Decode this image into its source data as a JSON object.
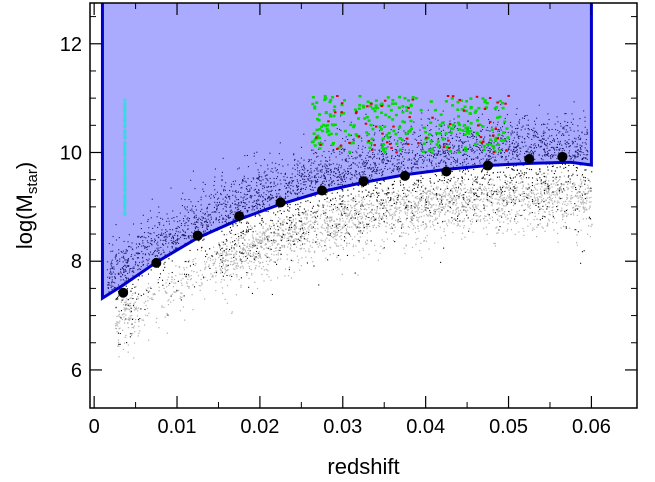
{
  "chart_data": {
    "type": "scatter",
    "xlabel": "redshift",
    "ylabel_main": "log(M",
    "ylabel_sub": "star",
    "ylabel_close": ")",
    "xlim": [
      -0.0005,
      0.0655
    ],
    "ylim": [
      5.3,
      12.75
    ],
    "x_ticks": [
      {
        "value": 0,
        "label": "0"
      },
      {
        "value": 0.01,
        "label": "0.01"
      },
      {
        "value": 0.02,
        "label": "0.02"
      },
      {
        "value": 0.03,
        "label": "0.03"
      },
      {
        "value": 0.04,
        "label": "0.04"
      },
      {
        "value": 0.05,
        "label": "0.05"
      },
      {
        "value": 0.06,
        "label": "0.06"
      }
    ],
    "y_ticks": [
      {
        "value": 6,
        "label": "6"
      },
      {
        "value": 8,
        "label": "8"
      },
      {
        "value": 10,
        "label": "10"
      },
      {
        "value": 12,
        "label": "12"
      }
    ],
    "grid": false,
    "legend": "none",
    "completeness_curve": {
      "color": "#0000cc",
      "x": [
        0.001,
        0.0035,
        0.0075,
        0.0125,
        0.0175,
        0.0225,
        0.0275,
        0.0325,
        0.0375,
        0.0425,
        0.0475,
        0.0525,
        0.0575,
        0.06
      ],
      "y": [
        7.32,
        7.56,
        7.98,
        8.43,
        8.77,
        9.05,
        9.28,
        9.45,
        9.59,
        9.69,
        9.76,
        9.8,
        9.82,
        9.77
      ]
    },
    "selection_region": {
      "color": "#aaaaff",
      "x_min": 0.001,
      "x_max": 0.06,
      "y_top": 12.75
    },
    "binned_points": {
      "color": "#000000",
      "x": [
        0.0035,
        0.0075,
        0.0125,
        0.0175,
        0.0225,
        0.0275,
        0.0325,
        0.0375,
        0.0425,
        0.0475,
        0.0525,
        0.0565
      ],
      "y": [
        7.42,
        7.97,
        8.47,
        8.83,
        9.08,
        9.3,
        9.47,
        9.57,
        9.65,
        9.76,
        9.88,
        9.92
      ]
    },
    "cyan_points": {
      "color": "#33dddd",
      "x": 0.0037,
      "y_from": 8.85,
      "y_to": 10.95
    },
    "populations": [
      {
        "color": "#1a1a66",
        "description_key": "above-limit"
      },
      {
        "color": "#000000",
        "description_key": "black-dots"
      },
      {
        "color": "#b0b0b0",
        "description_key": "grey-dots"
      },
      {
        "color": "#00dd00",
        "description_key": "green-dots"
      },
      {
        "color": "#dd0000",
        "description_key": "red-dots"
      }
    ]
  }
}
